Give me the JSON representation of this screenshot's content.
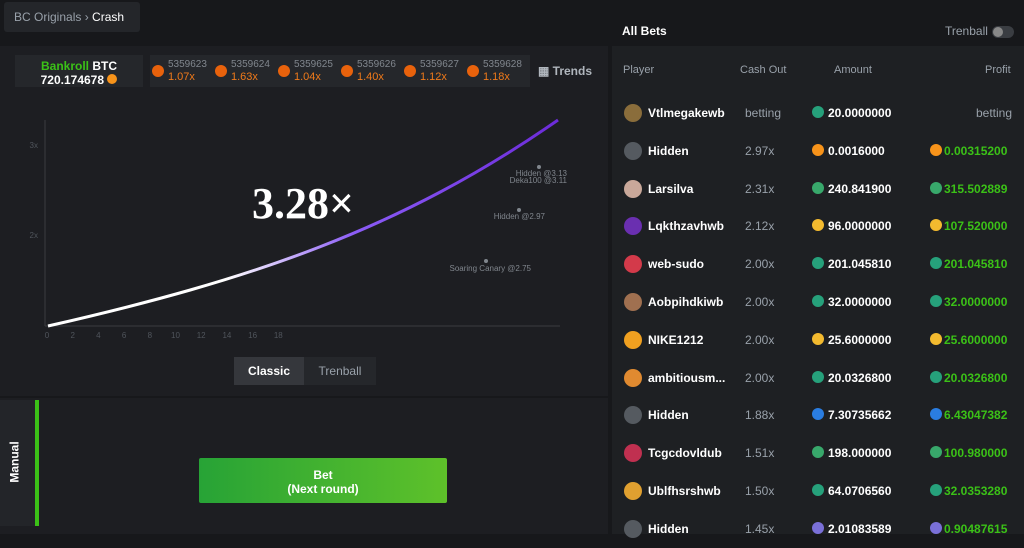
{
  "breadcrumb": [
    "BC Originals",
    "Crash"
  ],
  "bankroll": {
    "label": "Bankroll",
    "currency": "BTC",
    "value": "720.174678"
  },
  "history": [
    {
      "id": "5359623",
      "mult": "1.07x"
    },
    {
      "id": "5359624",
      "mult": "1.63x"
    },
    {
      "id": "5359625",
      "mult": "1.04x"
    },
    {
      "id": "5359626",
      "mult": "1.40x"
    },
    {
      "id": "5359627",
      "mult": "1.12x"
    },
    {
      "id": "5359628",
      "mult": "1.18x"
    }
  ],
  "trends": "Trends",
  "game": {
    "multiplier": "3.28×",
    "y_labels": [
      "3x",
      "2x"
    ],
    "x_labels": [
      "0",
      "2",
      "4",
      "6",
      "8",
      "10",
      "12",
      "14",
      "16",
      "18"
    ],
    "cashouts": [
      "Hidden @3.13",
      "Deka100 @3.11",
      "Hidden @2.97",
      "Soaring Canary @2.75"
    ]
  },
  "tabs": [
    "Classic",
    "Trenball"
  ],
  "side_tab": "Manual",
  "bet_button": {
    "label": "Bet",
    "sub": "(Next round)"
  },
  "bets": {
    "title": "All Bets",
    "toggle": "Trenball",
    "headers": [
      "Player",
      "Cash Out",
      "Amount",
      "Profit"
    ],
    "rows": [
      {
        "player": "Vtlmegakewb",
        "cashout": "betting",
        "amount": "20.0000000",
        "profit": "betting",
        "coin_color": "#26a17b",
        "avatar": "#8a6d3b"
      },
      {
        "player": "Hidden",
        "cashout": "2.97x",
        "amount": "0.0016000",
        "profit": "0.00315200",
        "coin_color": "#f7931a",
        "avatar": "#555a60"
      },
      {
        "player": "Larsilva",
        "cashout": "2.31x",
        "amount": "240.841900",
        "profit": "315.502889",
        "coin_color": "#38a86b",
        "avatar": "#c9a89a"
      },
      {
        "player": "Lqkthzavhwb",
        "cashout": "2.12x",
        "amount": "96.0000000",
        "profit": "107.520000",
        "coin_color": "#f3ba2f",
        "avatar": "#6a2fb0"
      },
      {
        "player": "web-sudo",
        "cashout": "2.00x",
        "amount": "201.045810",
        "profit": "201.045810",
        "coin_color": "#26a17b",
        "avatar": "#d33a4a"
      },
      {
        "player": "Aobpihdkiwb",
        "cashout": "2.00x",
        "amount": "32.0000000",
        "profit": "32.0000000",
        "coin_color": "#26a17b",
        "avatar": "#a07050"
      },
      {
        "player": "NIKE1212",
        "cashout": "2.00x",
        "amount": "25.6000000",
        "profit": "25.6000000",
        "coin_color": "#f3ba2f",
        "avatar": "#f0a020"
      },
      {
        "player": "ambitiousm...",
        "cashout": "2.00x",
        "amount": "20.0326800",
        "profit": "20.0326800",
        "coin_color": "#26a17b",
        "avatar": "#e08a30"
      },
      {
        "player": "Hidden",
        "cashout": "1.88x",
        "amount": "7.30735662",
        "profit": "6.43047382",
        "coin_color": "#2a7de1",
        "avatar": "#555a60"
      },
      {
        "player": "Tcgcdovldub",
        "cashout": "1.51x",
        "amount": "198.000000",
        "profit": "100.980000",
        "coin_color": "#38a86b",
        "avatar": "#c03050"
      },
      {
        "player": "Ublfhsrshwb",
        "cashout": "1.50x",
        "amount": "64.0706560",
        "profit": "32.0353280",
        "coin_color": "#26a17b",
        "avatar": "#e0a030"
      },
      {
        "player": "Hidden",
        "cashout": "1.45x",
        "amount": "2.01083589",
        "profit": "0.90487615",
        "coin_color": "#7a70d8",
        "avatar": "#555a60"
      }
    ]
  }
}
